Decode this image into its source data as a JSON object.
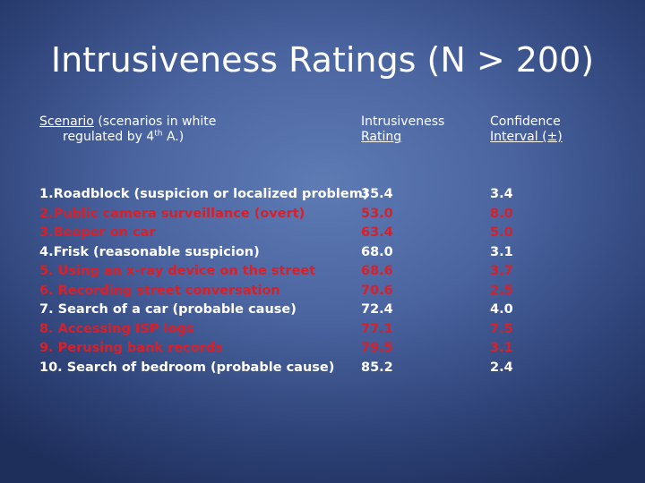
{
  "slide": {
    "title": "Intrusiveness Ratings (N > 200)",
    "header": {
      "scenario_label": "Scenario",
      "scenario_note_1": "(scenarios in white",
      "scenario_note_2_pre": "regulated by 4",
      "scenario_note_2_sup": "th",
      "scenario_note_2_post": " A.)",
      "rating_line1": "Intrusiveness",
      "rating_line2": "Rating",
      "conf_line1": "Confidence",
      "conf_line2": "Interval (±)"
    },
    "rows": [
      {
        "scenario": "1.Roadblock (suspicion or localized problem)",
        "rating": "35.4",
        "ci": "3.4",
        "color": "white"
      },
      {
        "scenario": "2.Public camera surveillance (overt)",
        "rating": "53.0",
        "ci": "8.0",
        "color": "red"
      },
      {
        "scenario": "3.Beeper on car",
        "rating": "63.4",
        "ci": "5.0",
        "color": "red"
      },
      {
        "scenario": "4.Frisk (reasonable suspicion)",
        "rating": "68.0",
        "ci": "3.1",
        "color": "white"
      },
      {
        "scenario": "5. Using an x-ray device on the street",
        "rating": "68.6",
        "ci": "3.7",
        "color": "red"
      },
      {
        "scenario": "6. Recording street conversation",
        "rating": "70.6",
        "ci": "2.5",
        "color": "red"
      },
      {
        "scenario": "7. Search of a car (probable cause)",
        "rating": "72.4",
        "ci": "4.0",
        "color": "white"
      },
      {
        "scenario": "8. Accessing ISP logs",
        "rating": "77.1",
        "ci": "7.5",
        "color": "red"
      },
      {
        "scenario": "9. Perusing bank records",
        "rating": "79.5",
        "ci": "3.1",
        "color": "red"
      },
      {
        "scenario": "10. Search of bedroom (probable cause)",
        "rating": "85.2",
        "ci": "2.4",
        "color": "white"
      }
    ]
  },
  "colors": {
    "regulated_text": "#ffffff",
    "unregulated_text": "#d8202a",
    "background": "#4a64a0"
  }
}
